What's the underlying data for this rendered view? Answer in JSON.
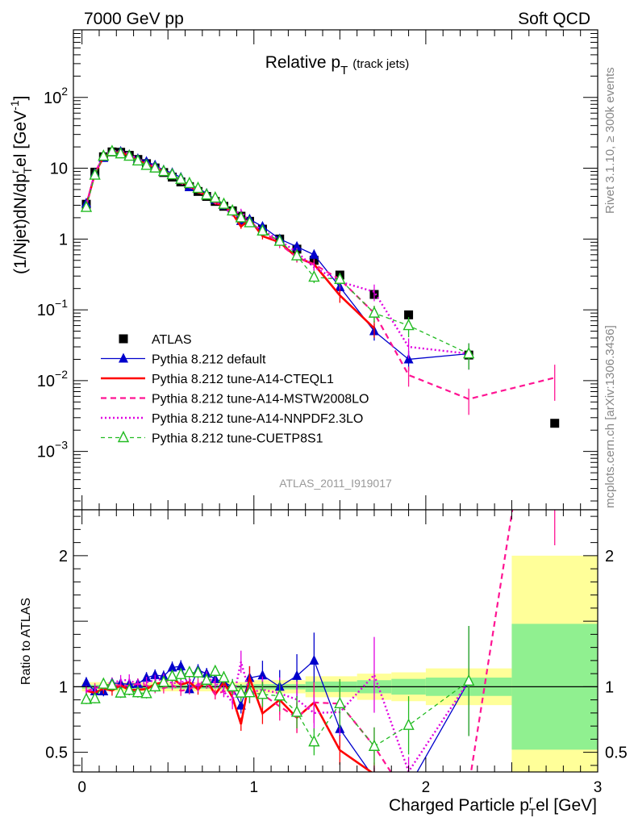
{
  "header": {
    "left": "7000 GeV pp",
    "right": "Soft QCD"
  },
  "side_text": {
    "rivet": "Rivet 3.1.10, ≥ 300k events",
    "mcplots": "mcplots.cern.ch [arXiv:1306.3436]"
  },
  "colors": {
    "atlas": "#000000",
    "default": "#0000cc",
    "cteql1": "#ff0000",
    "mstw": "#ff1493",
    "nnpdf": "#e000e0",
    "cuetp8s1": "#22bb22",
    "band_stat": "#90f090",
    "band_total": "#ffff99"
  },
  "chart_data": {
    "type": "scatter",
    "title": "Relative p",
    "title_sub": "T",
    "title_suffix": "(track jets)",
    "watermark": "ATLAS_2011_I919017",
    "main": {
      "ylabel": "(1/Njet)dN/dp",
      "ylabel_sup": "r",
      "ylabel_sub": "T",
      "ylabel_tail": "el [GeV",
      "ylabel_unit_sup": "-1",
      "ylabel_close": "]",
      "yscale": "log",
      "ylim": [
        0.00015,
        900
      ],
      "y_tick_labels": [
        {
          "v": 0.001,
          "base": "10",
          "exp": "−3"
        },
        {
          "v": 0.01,
          "base": "10",
          "exp": "−2"
        },
        {
          "v": 0.1,
          "base": "10",
          "exp": "−1"
        },
        {
          "v": 1,
          "base": "1",
          "exp": ""
        },
        {
          "v": 10,
          "base": "10",
          "exp": ""
        },
        {
          "v": 100,
          "base": "10",
          "exp": "2"
        }
      ]
    },
    "ratio": {
      "ylabel": "Ratio to ATLAS",
      "ylim": [
        0.35,
        2.35
      ],
      "ticks": [
        {
          "v": 0.5,
          "label": "0.5"
        },
        {
          "v": 1,
          "label": "1"
        },
        {
          "v": 2,
          "label": "2"
        }
      ]
    },
    "xaxis": {
      "label": "Charged Particle p",
      "label_sup": "r",
      "label_sub": "T",
      "label_tail": "el [GeV]",
      "xlim": [
        -0.05,
        3.0
      ],
      "ticks": [
        {
          "v": 0,
          "label": "0"
        },
        {
          "v": 1,
          "label": "1"
        },
        {
          "v": 2,
          "label": "2"
        },
        {
          "v": 3,
          "label": "3"
        }
      ]
    },
    "x": [
      0.025,
      0.075,
      0.125,
      0.175,
      0.225,
      0.275,
      0.325,
      0.375,
      0.425,
      0.475,
      0.525,
      0.575,
      0.625,
      0.675,
      0.725,
      0.775,
      0.825,
      0.875,
      0.925,
      0.975,
      1.05,
      1.15,
      1.25,
      1.35,
      1.5,
      1.7,
      1.9,
      2.25,
      2.75
    ],
    "series": [
      {
        "name": "ATLAS",
        "key": "atlas",
        "style": "data",
        "values": [
          3.1,
          8.8,
          14.5,
          17.0,
          16.8,
          15.2,
          13.3,
          11.6,
          10.1,
          8.7,
          7.5,
          6.4,
          5.5,
          4.7,
          4.0,
          3.4,
          2.9,
          2.5,
          2.1,
          1.78,
          1.38,
          1.0,
          0.72,
          0.5,
          0.31,
          0.165,
          0.085,
          0.023,
          0.0025
        ]
      },
      {
        "name": "Pythia 8.212 default",
        "key": "default",
        "style": "solid-thin",
        "marker": "triangle-filled",
        "values": [
          3.2,
          8.5,
          14.0,
          17.5,
          17.2,
          15.5,
          13.6,
          12.4,
          11.0,
          9.4,
          8.6,
          7.4,
          5.4,
          5.3,
          4.4,
          3.6,
          3.0,
          2.5,
          1.8,
          1.9,
          1.5,
          1.0,
          0.78,
          0.6,
          0.21,
          0.05,
          0.02,
          0.024
        ]
      },
      {
        "name": "Pythia 8.212 tune-A14-CTEQL1",
        "key": "cteql1",
        "style": "solid-thick",
        "values": [
          3.0,
          8.4,
          14.3,
          16.5,
          17.0,
          14.8,
          13.0,
          11.4,
          10.3,
          9.0,
          8.0,
          6.5,
          5.7,
          4.6,
          4.2,
          3.2,
          3.0,
          2.3,
          1.5,
          1.9,
          1.1,
          0.9,
          0.55,
          0.44,
          0.16,
          0.055
        ]
      },
      {
        "name": "Pythia 8.212 tune-A14-MSTW2008LO",
        "key": "mstw",
        "style": "dashed",
        "values": [
          3.0,
          8.7,
          14.6,
          17.2,
          17.0,
          15.3,
          13.6,
          11.7,
          10.0,
          8.6,
          7.6,
          6.2,
          5.4,
          4.8,
          4.1,
          3.2,
          2.8,
          2.4,
          2.0,
          1.7,
          1.3,
          0.85,
          0.55,
          0.44,
          0.27,
          0.09,
          0.012,
          0.0055,
          0.011
        ]
      },
      {
        "name": "Pythia 8.212 tune-A14-NNPDF2.3LO",
        "key": "nnpdf",
        "style": "dotted",
        "values": [
          3.0,
          8.6,
          14.8,
          17.5,
          17.6,
          16.0,
          13.5,
          12.0,
          10.6,
          9.2,
          7.7,
          6.6,
          5.8,
          4.7,
          4.3,
          3.5,
          2.8,
          2.2,
          2.5,
          1.7,
          1.35,
          0.95,
          0.65,
          0.4,
          0.25,
          0.18,
          0.03,
          0.024
        ]
      },
      {
        "name": "Pythia 8.212 tune-CUETP8S1",
        "key": "cuetp8s1",
        "style": "dashed-thin",
        "marker": "triangle-open",
        "values": [
          2.8,
          8.0,
          14.8,
          17.2,
          16.0,
          14.8,
          12.7,
          11.0,
          10.1,
          9.0,
          8.1,
          7.0,
          6.1,
          5.2,
          4.2,
          3.8,
          3.1,
          2.5,
          2.0,
          1.7,
          1.3,
          0.93,
          0.58,
          0.29,
          0.27,
          0.09,
          0.06,
          0.024
        ]
      }
    ],
    "ratio_bands": [
      {
        "x0": 0.0,
        "x1": 1.0,
        "stat": 0.015,
        "total": 0.035
      },
      {
        "x0": 1.0,
        "x1": 1.3,
        "stat": 0.02,
        "total": 0.05
      },
      {
        "x0": 1.3,
        "x1": 1.6,
        "stat": 0.04,
        "total": 0.08
      },
      {
        "x0": 1.6,
        "x1": 1.8,
        "stat": 0.05,
        "total": 0.1
      },
      {
        "x0": 1.8,
        "x1": 2.0,
        "stat": 0.06,
        "total": 0.11
      },
      {
        "x0": 2.0,
        "x1": 2.5,
        "stat": 0.07,
        "total": 0.14
      },
      {
        "x0": 2.5,
        "x1": 3.0,
        "stat": 0.48,
        "total": 1.0
      }
    ]
  }
}
